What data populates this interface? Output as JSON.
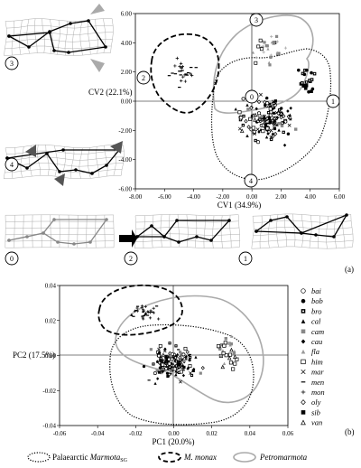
{
  "panel_a_label": "(a)",
  "panel_b_label": "(b)",
  "legend_species": [
    {
      "code": "bai",
      "marker": "open-circle"
    },
    {
      "code": "bob",
      "marker": "filled-circle"
    },
    {
      "code": "bro",
      "marker": "filled-square-dot"
    },
    {
      "code": "cal",
      "marker": "filled-triangle"
    },
    {
      "code": "cam",
      "marker": "gray-square"
    },
    {
      "code": "cau",
      "marker": "filled-diamond"
    },
    {
      "code": "fla",
      "marker": "gray-triangle"
    },
    {
      "code": "him",
      "marker": "open-square"
    },
    {
      "code": "mar",
      "marker": "x-cross"
    },
    {
      "code": "men",
      "marker": "small-dash"
    },
    {
      "code": "mon",
      "marker": "plus"
    },
    {
      "code": "oly",
      "marker": "open-diamond"
    },
    {
      "code": "sib",
      "marker": "filled-square"
    },
    {
      "code": "van",
      "marker": "open-triangle"
    }
  ],
  "bottom_legend": {
    "item1_text": "Palaearctic ",
    "item1_italic": "Marmota",
    "item1_sub": "SG",
    "item2": "M. monax",
    "item3": "Petromarmota"
  },
  "chart_data": [
    {
      "type": "scatter",
      "panel": "a",
      "xlabel": "CV1 (34.9%)",
      "ylabel": "CV2 (22.1%)",
      "xlim": [
        -8.0,
        6.0
      ],
      "ylim": [
        -6.0,
        6.0
      ],
      "xticks": [
        "-8.00",
        "-6.00",
        "-4.00",
        "-2.00",
        "0.00",
        "2.00",
        "4.00",
        "6.00"
      ],
      "yticks": [
        "6.00",
        "4.00",
        "2.00",
        "0.00",
        "-2.00",
        "-4.00",
        "-6.00"
      ],
      "grid": false,
      "region_labels": [
        "0",
        "1",
        "2",
        "3",
        "4"
      ],
      "groups": [
        "Palaearctic Marmota SG",
        "M. monax",
        "Petromarmota"
      ]
    },
    {
      "type": "scatter",
      "panel": "b",
      "xlabel": "PC1 (20.0%)",
      "ylabel": "PC2 (17.5%)",
      "xlim": [
        -0.06,
        0.06
      ],
      "ylim": [
        -0.04,
        0.04
      ],
      "xticks": [
        "-0.06",
        "-0.04",
        "-0.02",
        "0.00",
        "0.02",
        "0.04",
        "0.06"
      ],
      "yticks": [
        "0.04",
        "0.02",
        "0.00",
        "-0.02",
        "-0.04"
      ],
      "grid": false,
      "groups": [
        "Palaearctic Marmota SG",
        "M. monax",
        "Petromarmota"
      ]
    }
  ]
}
